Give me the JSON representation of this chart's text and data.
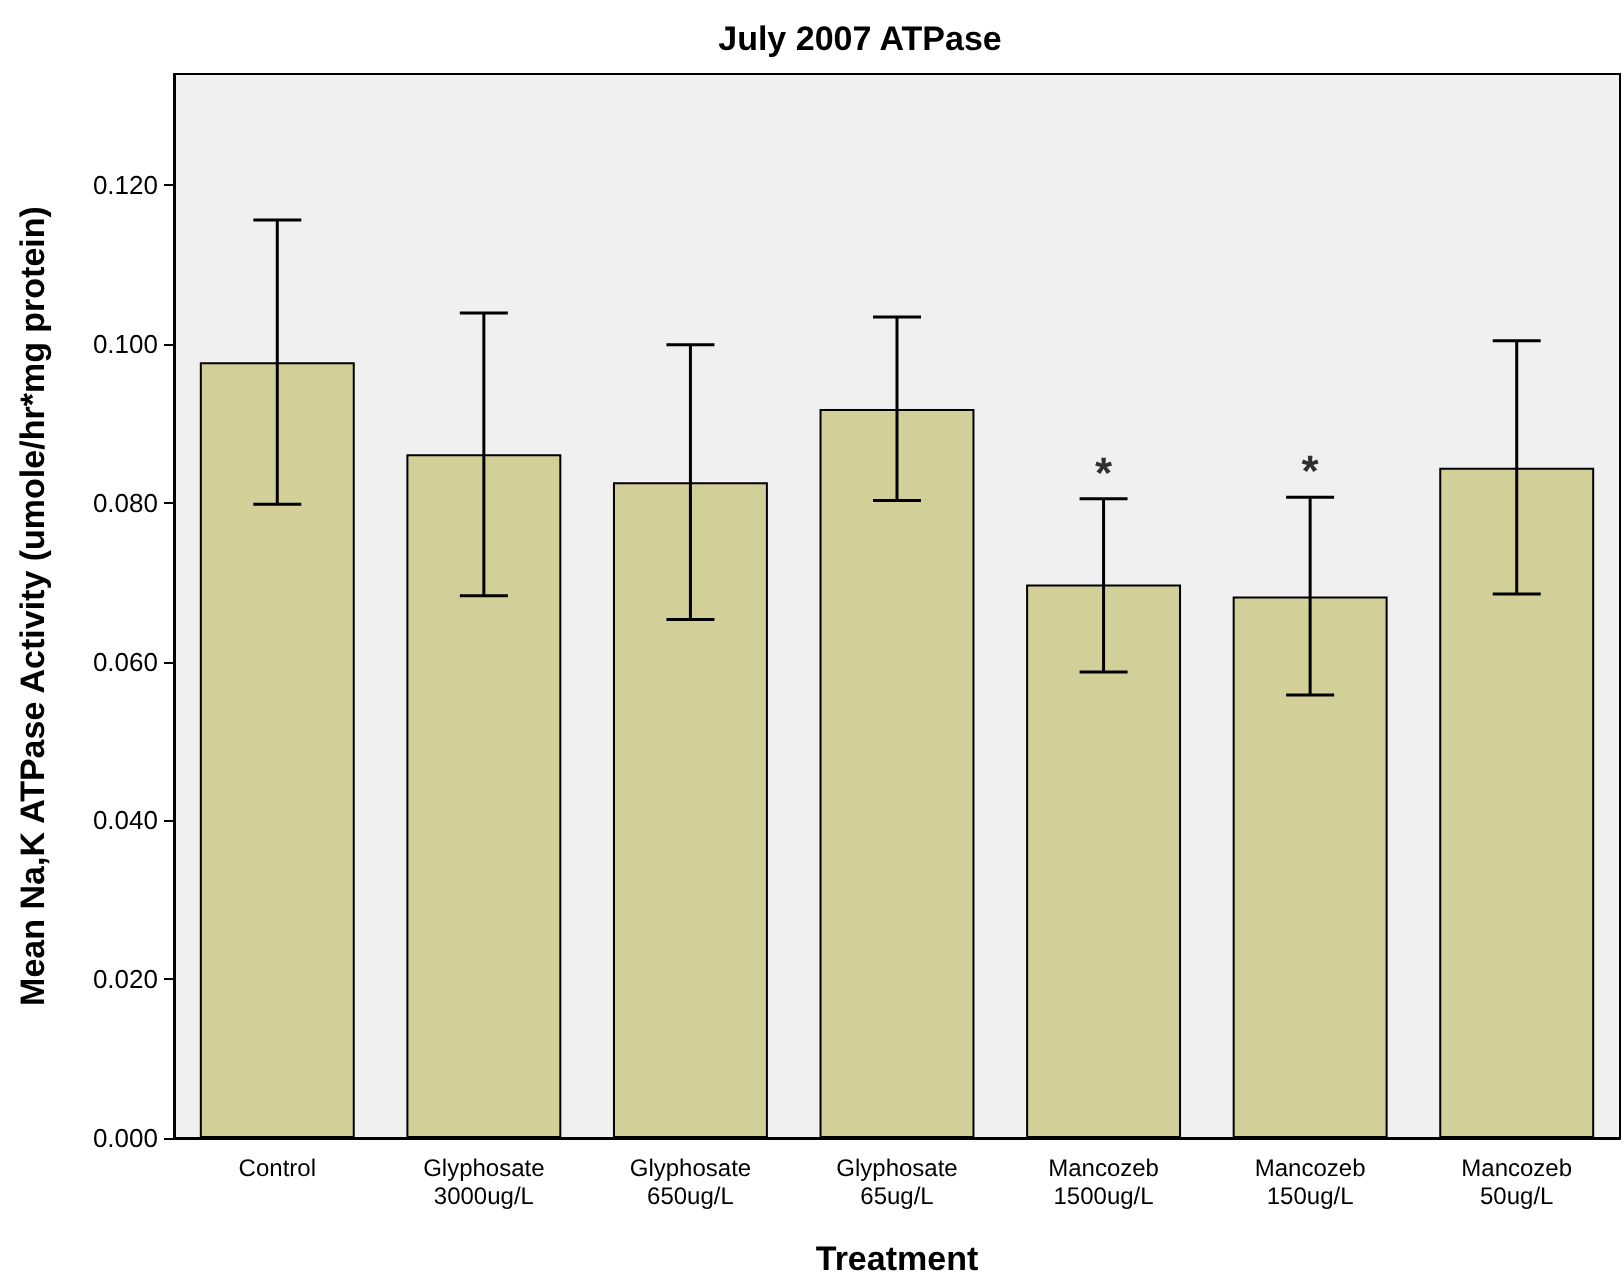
{
  "chart_data": {
    "type": "bar",
    "title": "July 2007 ATPase",
    "xlabel": "Treatment",
    "ylabel": "Mean Na,K ATPase Activity (umole/hr*mg protein)",
    "categories": [
      "Control",
      "Glyphosate\n3000ug/L",
      "Glyphosate\n650ug/L",
      "Glyphosate\n65ug/L",
      "Mancozeb\n1500ug/L",
      "Mancozeb\n150ug/L",
      "Mancozeb\n50ug/L"
    ],
    "values": [
      0.0977,
      0.0861,
      0.0826,
      0.0918,
      0.0697,
      0.0682,
      0.0844
    ],
    "errors": [
      [
        0.0798,
        0.1156
      ],
      [
        0.0683,
        0.1039
      ],
      [
        0.0653,
        0.0999
      ],
      [
        0.0803,
        0.1034
      ],
      [
        0.0587,
        0.0805
      ],
      [
        0.0558,
        0.0807
      ],
      [
        0.0685,
        0.1004
      ]
    ],
    "color": "#d3cf98",
    "ylim": [
      0,
      0.134
    ],
    "yticks": [
      {
        "value": 0,
        "label": "0.000"
      },
      {
        "value": 0.02,
        "label": "0.020"
      },
      {
        "value": 0.04,
        "label": "0.040"
      },
      {
        "value": 0.06,
        "label": "0.060"
      },
      {
        "value": 0.08,
        "label": "0.080"
      },
      {
        "value": 0.1,
        "label": "0.100"
      },
      {
        "value": 0.12,
        "label": "0.120"
      }
    ],
    "annotations": [
      {
        "text": "*",
        "x": "Mancozeb\n1500ug/L",
        "y": 0.0805
      },
      {
        "text": "*",
        "x": "Mancozeb\n150ug/L",
        "y": 0.0807
      }
    ],
    "grid": false
  }
}
